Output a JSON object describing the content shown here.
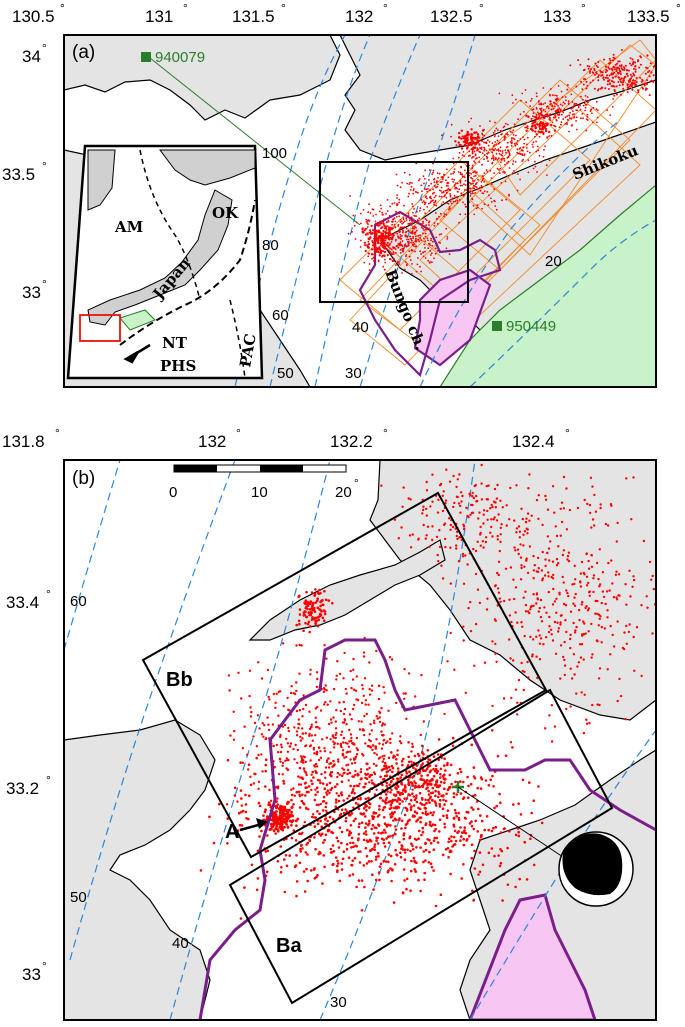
{
  "panel_a": {
    "label": "(a)",
    "lon_ticks": [
      "130.5",
      "131",
      "131.5",
      "132",
      "132.5",
      "133",
      "133.5"
    ],
    "lat_ticks": [
      "34",
      "33.5",
      "33"
    ],
    "degree_symbol": "°",
    "stations": [
      {
        "id": "940079",
        "color": "#2a7d2a"
      },
      {
        "id": "950449",
        "color": "#2a7d2a"
      }
    ],
    "region_labels": {
      "shikoku": "Shikoku",
      "bungo": "Bungo ch."
    },
    "depth_contours": [
      "100",
      "80",
      "60",
      "40",
      "50",
      "30",
      "20"
    ],
    "inset": {
      "plates": [
        "AM",
        "OK",
        "Japan",
        "NT",
        "PHS",
        "PAC"
      ]
    }
  },
  "panel_b": {
    "label": "(b)",
    "lon_ticks": [
      "131.8",
      "132",
      "132.2",
      "132.4"
    ],
    "lat_ticks": [
      "33.4",
      "33.2",
      "33"
    ],
    "degree_symbol": "°",
    "scale_bar": {
      "ticks": [
        "0",
        "10",
        "20"
      ],
      "unit_symbol": "°"
    },
    "boxes": [
      {
        "name": "Bb"
      },
      {
        "name": "Ba"
      }
    ],
    "marker_label": "A",
    "depth_contours": [
      "60",
      "50",
      "40",
      "30"
    ]
  },
  "colors": {
    "events": "#ff0000",
    "slab_contour": "#2b86d9",
    "swarm_outline": "#7a1f8a",
    "swarm_fill": "#f7c6f2",
    "slip_zone": "#c8f2c8",
    "land": "#e4e4e4",
    "fault_boxes": "#f08a2a",
    "station": "#2a7d2a"
  }
}
